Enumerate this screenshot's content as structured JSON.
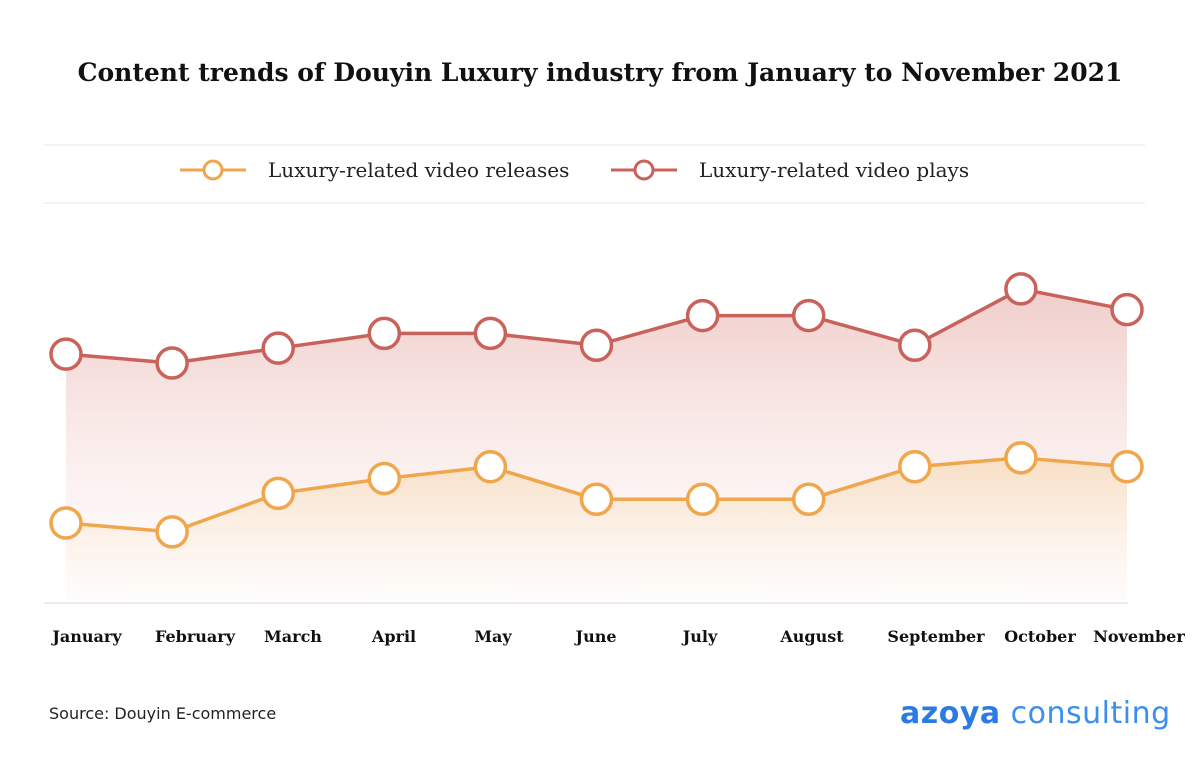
{
  "chart_data": {
    "type": "line",
    "title": "Content trends of Douyin Luxury industry from January to November 2021",
    "categories": [
      "January",
      "February",
      "March",
      "April",
      "May",
      "June",
      "July",
      "August",
      "September",
      "October",
      "November"
    ],
    "series": [
      {
        "name": "Luxury-related video releases",
        "color": "#f0a64c",
        "values": [
          27,
          24,
          37,
          42,
          46,
          35,
          35,
          35,
          46,
          49,
          46
        ]
      },
      {
        "name": "Luxury-related video plays",
        "color": "#c9625a",
        "values": [
          84,
          81,
          86,
          91,
          91,
          87,
          97,
          97,
          87,
          106,
          99
        ]
      }
    ],
    "ylim": [
      0,
      135
    ],
    "xlabel": "",
    "ylabel": "",
    "grid": false,
    "legend_position": "top"
  },
  "source": "Source: Douyin E-commerce",
  "logo": {
    "part1": "azoya",
    "part2": " consulting"
  }
}
